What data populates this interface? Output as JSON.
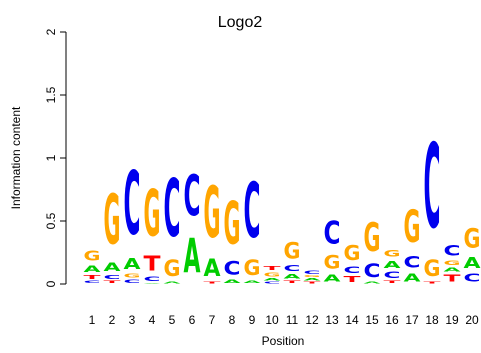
{
  "chart_data": {
    "type": "sequence-logo",
    "title": "Logo2",
    "xlabel": "Position",
    "ylabel": "Information content",
    "ylim": [
      0,
      2
    ],
    "yticks": [
      "0",
      "0.5",
      "1",
      "1.5",
      "2"
    ],
    "xticks": [
      "1",
      "2",
      "3",
      "4",
      "5",
      "6",
      "7",
      "8",
      "9",
      "10",
      "11",
      "12",
      "13",
      "14",
      "15",
      "16",
      "17",
      "18",
      "19",
      "20"
    ],
    "colors": {
      "A": "#00CC00",
      "C": "#0000EE",
      "G": "#FFA500",
      "T": "#FF0000"
    },
    "positions": [
      {
        "position": 1,
        "stack": [
          [
            "C",
            0.03
          ],
          [
            "T",
            0.05
          ],
          [
            "A",
            0.08
          ],
          [
            "G",
            0.12
          ]
        ]
      },
      {
        "position": 2,
        "stack": [
          [
            "T",
            0.03
          ],
          [
            "C",
            0.05
          ],
          [
            "A",
            0.11
          ],
          [
            "G",
            0.64
          ]
        ]
      },
      {
        "position": 3,
        "stack": [
          [
            "C",
            0.04
          ],
          [
            "G",
            0.05
          ],
          [
            "A",
            0.14
          ],
          [
            "C",
            0.81
          ]
        ]
      },
      {
        "position": 4,
        "stack": [
          [
            "A",
            0.01
          ],
          [
            "C",
            0.06
          ],
          [
            "T",
            0.19
          ],
          [
            "G",
            0.6
          ]
        ]
      },
      {
        "position": 5,
        "stack": [
          [
            "A",
            0.02
          ],
          [
            "G",
            0.21
          ],
          [
            "C",
            0.74
          ]
        ]
      },
      {
        "position": 6,
        "stack": [
          [
            "A",
            0.44
          ],
          [
            "C",
            0.52
          ]
        ]
      },
      {
        "position": 7,
        "stack": [
          [
            "T",
            0.02
          ],
          [
            "A",
            0.22
          ],
          [
            "G",
            0.65
          ]
        ]
      },
      {
        "position": 8,
        "stack": [
          [
            "A",
            0.04
          ],
          [
            "C",
            0.17
          ],
          [
            "G",
            0.55
          ]
        ]
      },
      {
        "position": 9,
        "stack": [
          [
            "A",
            0.03
          ],
          [
            "G",
            0.2
          ],
          [
            "C",
            0.7
          ]
        ]
      },
      {
        "position": 10,
        "stack": [
          [
            "C",
            0.02
          ],
          [
            "A",
            0.03
          ],
          [
            "G",
            0.05
          ],
          [
            "T",
            0.05
          ]
        ]
      },
      {
        "position": 11,
        "stack": [
          [
            "T",
            0.03
          ],
          [
            "A",
            0.06
          ],
          [
            "C",
            0.07
          ],
          [
            "G",
            0.21
          ]
        ]
      },
      {
        "position": 12,
        "stack": [
          [
            "T",
            0.02
          ],
          [
            "A",
            0.03
          ],
          [
            "G",
            0.02
          ],
          [
            "C",
            0.04
          ]
        ]
      },
      {
        "position": 13,
        "stack": [
          [
            "A",
            0.09
          ],
          [
            "G",
            0.17
          ],
          [
            "C",
            0.29
          ]
        ]
      },
      {
        "position": 14,
        "stack": [
          [
            "T",
            0.07
          ],
          [
            "C",
            0.08
          ],
          [
            "G",
            0.19
          ]
        ]
      },
      {
        "position": 15,
        "stack": [
          [
            "A",
            0.02
          ],
          [
            "C",
            0.17
          ],
          [
            "G",
            0.36
          ]
        ]
      },
      {
        "position": 16,
        "stack": [
          [
            "T",
            0.03
          ],
          [
            "C",
            0.08
          ],
          [
            "A",
            0.09
          ],
          [
            "G",
            0.08
          ]
        ]
      },
      {
        "position": 17,
        "stack": [
          [
            "A",
            0.1
          ],
          [
            "C",
            0.15
          ],
          [
            "G",
            0.41
          ]
        ]
      },
      {
        "position": 18,
        "stack": [
          [
            "T",
            0.02
          ],
          [
            "G",
            0.21
          ],
          [
            "C",
            1.08
          ]
        ]
      },
      {
        "position": 19,
        "stack": [
          [
            "T",
            0.09
          ],
          [
            "A",
            0.05
          ],
          [
            "G",
            0.06
          ],
          [
            "C",
            0.13
          ]
        ]
      },
      {
        "position": 20,
        "stack": [
          [
            "C",
            0.1
          ],
          [
            "A",
            0.14
          ],
          [
            "G",
            0.25
          ]
        ]
      }
    ]
  }
}
